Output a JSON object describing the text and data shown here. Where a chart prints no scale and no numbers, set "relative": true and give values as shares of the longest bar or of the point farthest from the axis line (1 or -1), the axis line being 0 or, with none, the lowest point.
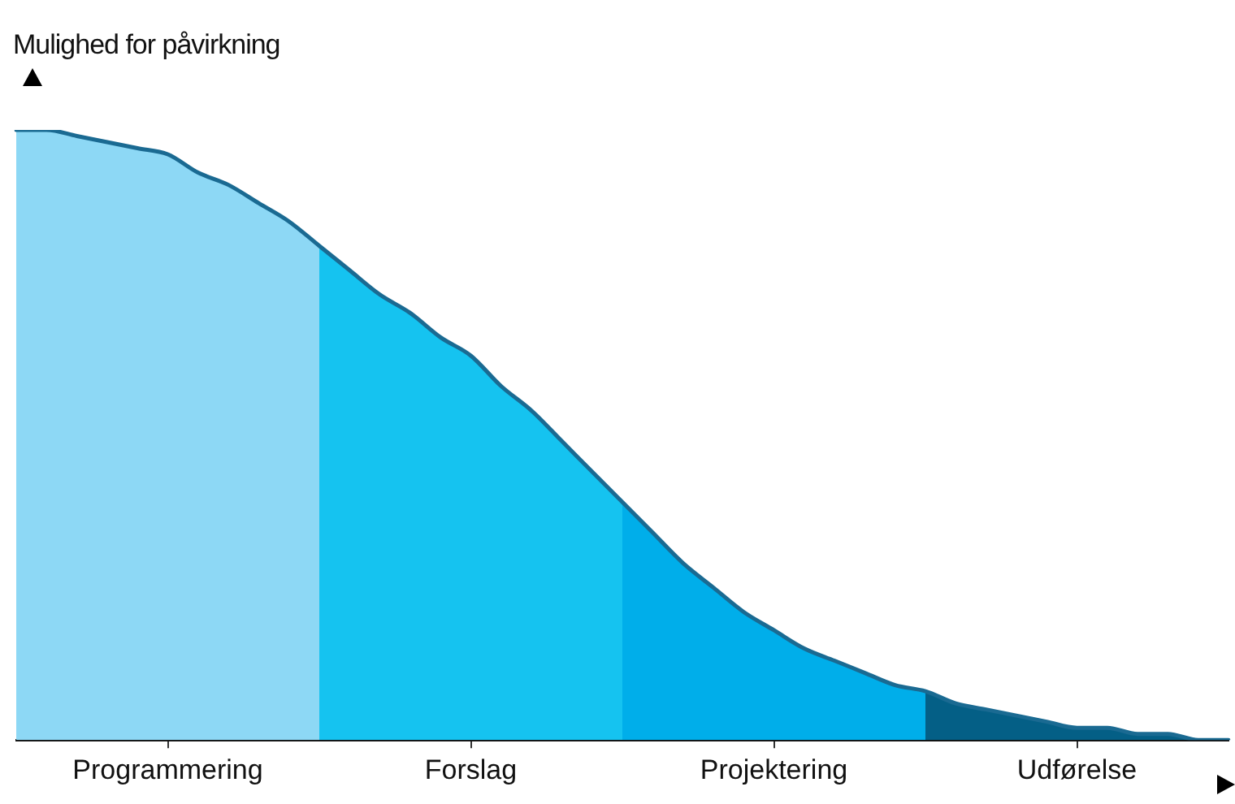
{
  "chart_data": {
    "type": "area",
    "ylabel": "Mulighed for påvirkning",
    "relative": true,
    "marker": "none",
    "categories": [
      null,
      null,
      null,
      null,
      null,
      "Programmering",
      null,
      null,
      null,
      null,
      null,
      null,
      null,
      null,
      null,
      "Forslag",
      null,
      null,
      null,
      null,
      null,
      null,
      null,
      null,
      null,
      "Projektering",
      null,
      null,
      null,
      null,
      null,
      null,
      null,
      null,
      null,
      "Udførelse",
      null,
      null,
      null,
      null,
      null
    ],
    "series": [
      {
        "type": "area",
        "color": "#8dd8f5",
        "values": [
          1,
          1.0,
          0.99,
          0.98,
          0.97,
          0.96,
          0.93,
          0.91,
          0.88,
          0.85,
          0.81,
          null,
          null,
          null,
          null,
          null,
          null,
          null,
          null,
          null,
          null,
          null,
          null,
          null,
          null,
          null,
          null,
          null,
          null,
          null,
          null,
          null,
          null,
          null,
          null,
          null,
          null,
          null,
          null,
          null,
          null
        ]
      },
      {
        "type": "area",
        "color": "#15c3f0",
        "values": [
          null,
          null,
          null,
          null,
          null,
          null,
          null,
          null,
          null,
          null,
          0.81,
          0.77,
          0.73,
          0.7,
          0.66,
          0.63,
          0.58,
          0.54,
          0.49,
          0.44,
          0.39,
          null,
          null,
          null,
          null,
          null,
          null,
          null,
          null,
          null,
          null,
          null,
          null,
          null,
          null,
          null,
          null,
          null,
          null,
          null,
          null
        ]
      },
      {
        "type": "area",
        "color": "#00aeea",
        "values": [
          null,
          null,
          null,
          null,
          null,
          null,
          null,
          null,
          null,
          null,
          null,
          null,
          null,
          null,
          null,
          null,
          null,
          null,
          null,
          null,
          0.39,
          0.34,
          0.29,
          0.25,
          0.21,
          0.18,
          0.15,
          0.13,
          0.11,
          0.09,
          0.08,
          null,
          null,
          null,
          null,
          null,
          null,
          null,
          null,
          null,
          null
        ]
      },
      {
        "type": "area",
        "color": "#045f86",
        "values": [
          null,
          null,
          null,
          null,
          null,
          null,
          null,
          null,
          null,
          null,
          null,
          null,
          null,
          null,
          null,
          null,
          null,
          null,
          null,
          null,
          null,
          null,
          null,
          null,
          null,
          null,
          null,
          null,
          null,
          null,
          0.08,
          0.06,
          0.05,
          0.04,
          0.03,
          0.02,
          0.02,
          0.01,
          0.01,
          0,
          0
        ]
      },
      {
        "type": "line",
        "color": "#1a6a92",
        "values": [
          1,
          1.0,
          0.99,
          0.98,
          0.97,
          0.96,
          0.93,
          0.91,
          0.88,
          0.85,
          0.81,
          0.77,
          0.73,
          0.7,
          0.66,
          0.63,
          0.58,
          0.54,
          0.49,
          0.44,
          0.39,
          0.34,
          0.29,
          0.25,
          0.21,
          0.18,
          0.15,
          0.13,
          0.11,
          0.09,
          0.08,
          0.06,
          0.05,
          0.04,
          0.03,
          0.02,
          0.02,
          0.01,
          0.01,
          0,
          0
        ]
      }
    ]
  }
}
